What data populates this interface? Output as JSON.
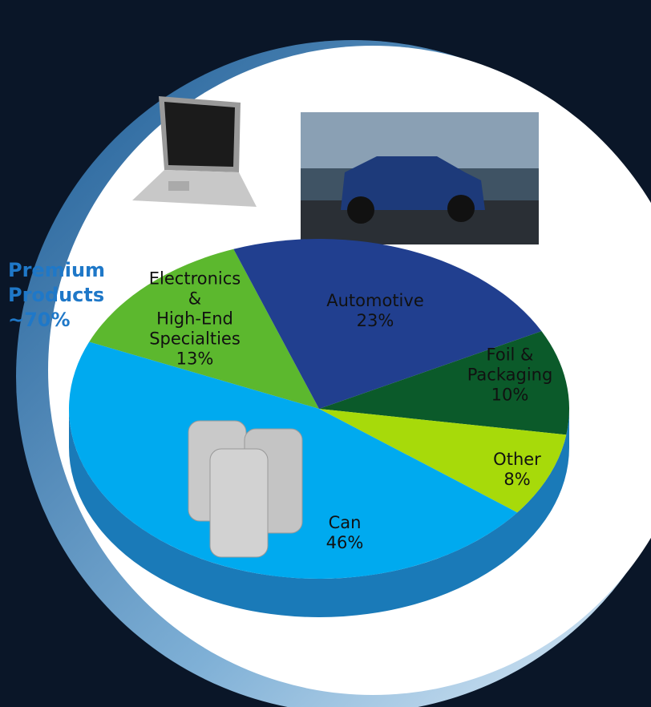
{
  "chart_data": {
    "type": "pie",
    "categories": [
      "Electronics\n&\nHigh-End\nSpecialties",
      "Automotive",
      "Foil &\nPackaging",
      "Other",
      "Can"
    ],
    "values": [
      13,
      23,
      10,
      8,
      46
    ],
    "value_labels": [
      "13%",
      "23%",
      "10%",
      "8%",
      "46%"
    ],
    "colors": [
      "#5cb82e",
      "#213f8f",
      "#0b5a2a",
      "#a7da0a",
      "#00aaef"
    ],
    "annotation": "Premium\nProducts\n~70%"
  }
}
